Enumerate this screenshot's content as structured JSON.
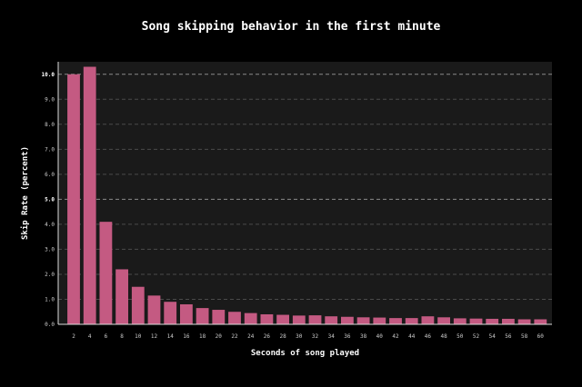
{
  "chart_data": {
    "type": "bar",
    "title": "Song skipping behavior in the first minute",
    "xlabel": "Seconds of song played",
    "ylabel": "Skip Rate (percent)",
    "ylim": [
      0,
      10.5
    ],
    "yticks": [
      "0.0",
      "1.0",
      "2.0",
      "3.0",
      "4.0",
      "5.0",
      "6.0",
      "7.0",
      "8.0",
      "9.0",
      "10.0"
    ],
    "highlighted_gridlines": [
      "5.0",
      "10.0"
    ],
    "grid": true,
    "categories": [
      "2",
      "4",
      "6",
      "8",
      "10",
      "12",
      "14",
      "16",
      "18",
      "20",
      "22",
      "24",
      "26",
      "28",
      "30",
      "32",
      "34",
      "36",
      "38",
      "40",
      "42",
      "44",
      "46",
      "48",
      "50",
      "52",
      "54",
      "56",
      "58",
      "60"
    ],
    "values": [
      10.0,
      10.3,
      4.1,
      2.2,
      1.5,
      1.15,
      0.9,
      0.8,
      0.65,
      0.58,
      0.5,
      0.45,
      0.4,
      0.38,
      0.35,
      0.36,
      0.32,
      0.3,
      0.28,
      0.27,
      0.25,
      0.25,
      0.32,
      0.28,
      0.24,
      0.23,
      0.22,
      0.22,
      0.2,
      0.2
    ],
    "colors": {
      "background": "#000000",
      "plot_background": "#1a1a1a",
      "bar": "#c45a82",
      "gridline": "#4a4a4a",
      "highlight_gridline": "#8a8a8a",
      "text": "#ffffff",
      "tick_text": "#cccccc"
    }
  }
}
